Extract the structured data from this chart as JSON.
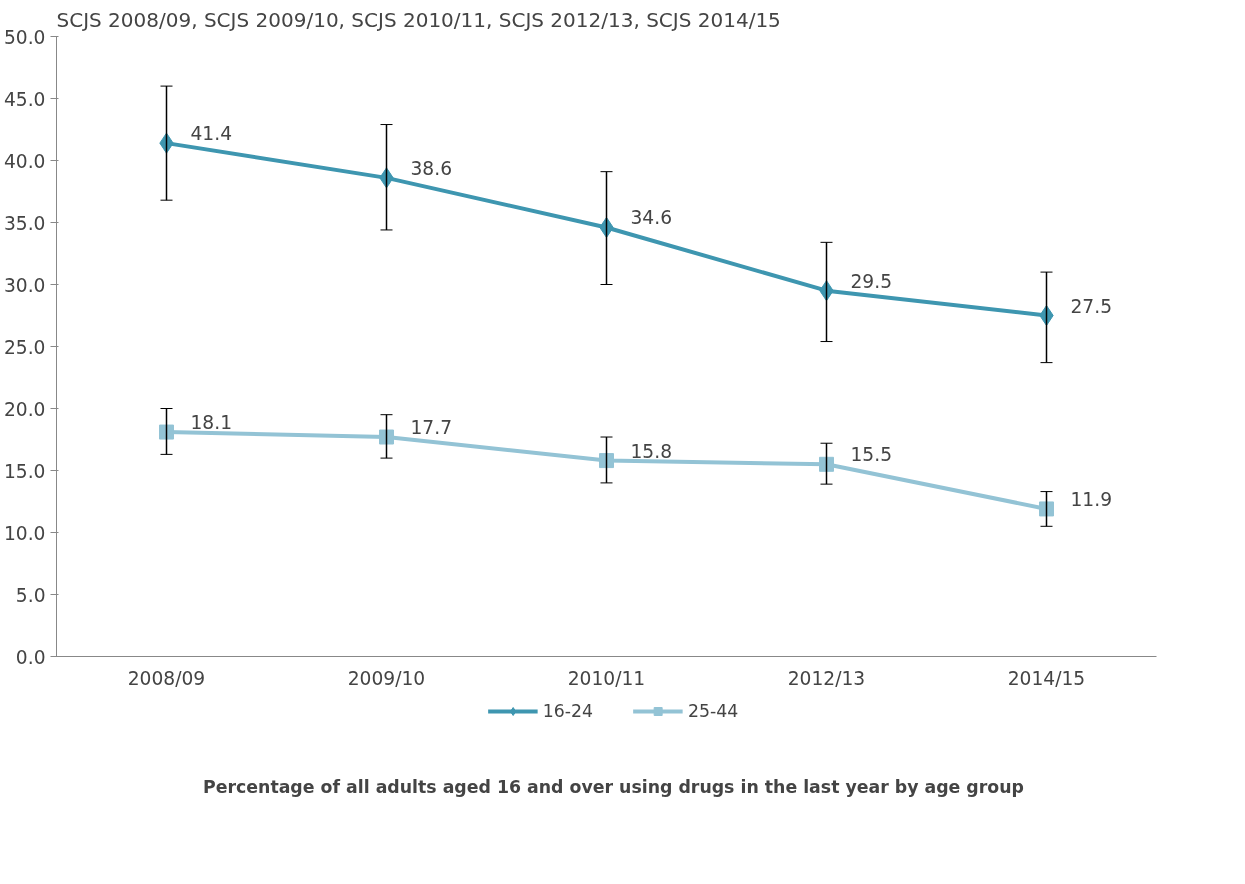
{
  "chart_data": {
    "type": "line",
    "title": "Percentage of all adults aged 16 and over using drugs in the last year by age group",
    "subtitle": "SCJS 2008/09, SCJS 2009/10, SCJS 2010/11, SCJS 2012/13, SCJS 2014/15",
    "categories": [
      "2008/09",
      "2009/10",
      "2010/11",
      "2012/13",
      "2014/15"
    ],
    "series": [
      {
        "name": "16-24",
        "color": "#3e96b0",
        "marker": "diamond",
        "values": [
          41.4,
          38.6,
          34.6,
          29.5,
          27.5
        ],
        "errors": [
          [
            36.8,
            46.0
          ],
          [
            34.4,
            42.9
          ],
          [
            30.0,
            39.1
          ],
          [
            25.4,
            33.4
          ],
          [
            23.7,
            31.0
          ]
        ]
      },
      {
        "name": "25-44",
        "color": "#93c3d5",
        "marker": "square",
        "values": [
          18.1,
          17.7,
          15.8,
          15.5,
          11.9
        ],
        "errors": [
          [
            16.3,
            20.0
          ],
          [
            16.0,
            19.5
          ],
          [
            14.0,
            17.7
          ],
          [
            13.9,
            17.2
          ],
          [
            10.5,
            13.3
          ]
        ]
      }
    ],
    "ylim": [
      0,
      50
    ],
    "yticks": [
      {
        "value": 0,
        "label": "0.0"
      },
      {
        "value": 5,
        "label": "5.0"
      },
      {
        "value": 10,
        "label": "10.0"
      },
      {
        "value": 15,
        "label": "15.0"
      },
      {
        "value": 20,
        "label": "20.0"
      },
      {
        "value": 25,
        "label": "25.0"
      },
      {
        "value": 30,
        "label": "30.0"
      },
      {
        "value": 35,
        "label": "35.0"
      },
      {
        "value": 40,
        "label": "40.0"
      },
      {
        "value": 45,
        "label": "45.0"
      },
      {
        "value": 50,
        "label": "50.0"
      }
    ],
    "data_labels": true,
    "grid": false,
    "legend": "bottom",
    "line_style": "solid"
  }
}
